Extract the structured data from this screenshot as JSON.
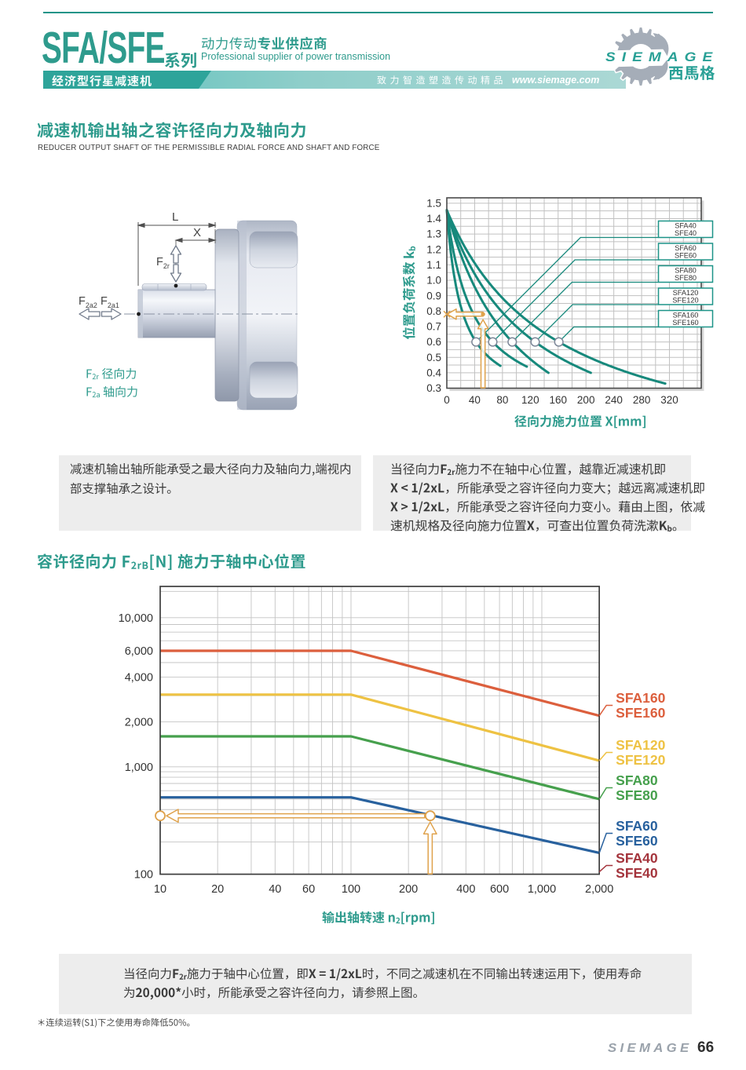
{
  "colors": {
    "teal": "#2E9B8D",
    "teal_deep": "#17897C",
    "band_dark": "#2EA49A",
    "band_light_1": "#5FC2BD",
    "band_light_2": "#AFDAD7",
    "logo_teal": "#29A096",
    "text_dark": "#3B3B3B",
    "box_gray": "#EDEDED",
    "sfa160": "#DC5F3D",
    "sfa120": "#EEC243",
    "sfa80": "#46A04D",
    "sfa60": "#28619E",
    "sfa40": "#A4343C",
    "annotation": "#DFA24C",
    "gear_gray": "#A5ADB8",
    "footer_gray": "#9AA2AB"
  },
  "header": {
    "series_title": "SFA/SFE",
    "series_suffix": [
      {
        "t": "系列",
        "b": 1
      }
    ],
    "tagline_cn": [
      {
        "t": "动力传动",
        "b": 0
      },
      {
        "t": "专业供应商",
        "b": 1
      }
    ],
    "tagline_en": "Professional supplier of power transmission",
    "band_product": [
      {
        "t": "经济型行星减速机",
        "b": 1
      }
    ],
    "band_slogan": [
      {
        "t": "致力智造塑造传动精品",
        "b": 0
      }
    ],
    "band_url": "www.siemage.com",
    "logo_text": "SIEMAGE",
    "logo_cn": [
      {
        "t": "西馬格",
        "b": 1
      }
    ]
  },
  "section1": {
    "title": [
      {
        "t": "减速机输出轴之容许径向力及轴向力",
        "b": 1
      }
    ],
    "subtitle": "REDUCER OUTPUT SHAFT OF THE PERMISSIBLE RADIAL FORCE AND SHAFT AND FORCE"
  },
  "drawing": {
    "dim_length": "L",
    "dim_position": "X",
    "force_radial": {
      "base": "F",
      "sub": "2r"
    },
    "force_axial_2": {
      "base": "F",
      "sub": "2a2"
    },
    "force_axial_1": {
      "base": "F",
      "sub": "2a1"
    },
    "legend_radial": [
      {
        "t": "F",
        "b": 0
      },
      {
        "t": "2r",
        "b": 0,
        "sub": 1
      },
      {
        "t": " 径向力",
        "b": 0
      }
    ],
    "legend_axial": [
      {
        "t": "F",
        "b": 0
      },
      {
        "t": "2a",
        "b": 0,
        "sub": 1
      },
      {
        "t": " 轴向力",
        "b": 0
      }
    ]
  },
  "section2": {
    "title": [
      {
        "t": "容许径向力 ",
        "b": 1
      },
      {
        "t": "F",
        "b": 1
      },
      {
        "t": "2rB",
        "b": 1,
        "sub": 1
      },
      {
        "t": "[N]",
        "b": 1
      },
      {
        "t": " 施力于轴中心位置",
        "b": 1
      }
    ]
  },
  "notes": {
    "left": {
      "lines": [
        [
          {
            "t": "减速机输出轴所能承受之最大径向力及轴向力,端视内",
            "b": 0
          }
        ],
        [
          {
            "t": "部支撑轴承之设计。",
            "b": 0
          }
        ]
      ]
    },
    "right": {
      "lines": [
        [
          {
            "t": "当径向力",
            "b": 0
          },
          {
            "t": "F",
            "b": 1
          },
          {
            "t": "2r",
            "b": 1,
            "sub": 1
          },
          {
            "t": "施力不在轴中心位置，越靠近减速机即",
            "b": 0
          }
        ],
        [
          {
            "t": "X",
            "b": 1
          },
          {
            "t": " < ",
            "b": 1
          },
          {
            "t": "1/2xL",
            "b": 1
          },
          {
            "t": "，所能承受之容许径向力变大；越远离减速机即",
            "b": 0
          }
        ],
        [
          {
            "t": "X",
            "b": 1
          },
          {
            "t": " > ",
            "b": 1
          },
          {
            "t": "1/2xL",
            "b": 1
          },
          {
            "t": "，所能承受之容许径向力变小。藉由上图，依减",
            "b": 0
          }
        ],
        [
          {
            "t": "速机规格及径向施力位置",
            "b": 0
          },
          {
            "t": "X",
            "b": 1
          },
          {
            "t": "，可查出位置负荷洗漱",
            "b": 0
          },
          {
            "t": "K",
            "b": 1
          },
          {
            "t": "b",
            "b": 1,
            "sub": 1
          },
          {
            "t": "。",
            "b": 0
          }
        ]
      ]
    },
    "bottom": {
      "lines": [
        [
          {
            "t": "当径向力",
            "b": 0
          },
          {
            "t": "F",
            "b": 1
          },
          {
            "t": "2r",
            "b": 1,
            "sub": 1
          },
          {
            "t": "施力于轴中心位置，即",
            "b": 0
          },
          {
            "t": "X",
            "b": 1
          },
          {
            "t": " = ",
            "b": 1
          },
          {
            "t": "1/2xL",
            "b": 1
          },
          {
            "t": "时，不同之减速机在不同输出转速运用下，使用寿命",
            "b": 0
          }
        ],
        [
          {
            "t": "为",
            "b": 0
          },
          {
            "t": "20,000*",
            "b": 1
          },
          {
            "t": "小时，所能承受之容许径向力，请参照上图。",
            "b": 0
          }
        ]
      ]
    }
  },
  "footnote": [
    {
      "t": "＊连续运转(S1)下之使用寿命降低50%。",
      "b": 0
    }
  ],
  "footer": {
    "brand": "SIEMAGE",
    "page": "66"
  },
  "chart_data": [
    {
      "type": "line",
      "name": "position-load-factor-chart",
      "xlabel_segs": [
        {
          "t": "径向力施力位置 ",
          "b": 1
        },
        {
          "t": "X[mm]",
          "b": 1
        }
      ],
      "ylabel_segs": [
        {
          "t": "位置负荷系数 ",
          "b": 1
        },
        {
          "t": "k",
          "b": 1
        },
        {
          "t": "b",
          "b": 1,
          "sub": 1
        }
      ],
      "xlim": [
        0,
        366
      ],
      "ylim": [
        0.3,
        1.535
      ],
      "xticks": [
        0,
        40,
        80,
        120,
        160,
        200,
        240,
        280,
        320
      ],
      "yticks": [
        "1.5",
        "1.4",
        "1.3",
        "1.2",
        "1.1",
        "1.0",
        "0.9",
        "0.8",
        "0.7",
        "0.6",
        "0.5",
        "0.4",
        "0.3"
      ],
      "grid": "on",
      "curve_start_kb": 1.455,
      "series": [
        {
          "name": "SFA40 / SFE40",
          "label": [
            "SFA40",
            "SFE40"
          ],
          "marker_x": 42,
          "marker_kb": 0.6,
          "end_x": 77,
          "end_kb": 0.445
        },
        {
          "name": "SFA60 / SFE60",
          "label": [
            "SFA60",
            "SFE60"
          ],
          "marker_x": 66,
          "marker_kb": 0.6,
          "end_x": 115,
          "end_kb": 0.44
        },
        {
          "name": "SFA80 / SFE80",
          "label": [
            "SFA80",
            "SFE80"
          ],
          "marker_x": 94,
          "marker_kb": 0.6,
          "end_x": 146,
          "end_kb": 0.4
        },
        {
          "name": "SFA120 / SFE120",
          "label": [
            "SFA120",
            "SFE120"
          ],
          "marker_x": 127,
          "marker_kb": 0.6,
          "end_x": 207,
          "end_kb": 0.4
        },
        {
          "name": "SFA160 / SFE160",
          "label": [
            "SFA160",
            "SFE160"
          ],
          "marker_x": 161,
          "marker_kb": 0.6,
          "end_x": 314,
          "end_kb": 0.33
        }
      ],
      "annotation": {
        "x_mm": 52,
        "kb": 0.78
      }
    },
    {
      "type": "line",
      "name": "permissible-radial-force-chart",
      "xlabel_segs": [
        {
          "t": "输出轴转速 ",
          "b": 1
        },
        {
          "t": "n",
          "b": 1
        },
        {
          "t": "2",
          "b": 1,
          "sub": 1
        },
        {
          "t": "[rpm]",
          "b": 1
        }
      ],
      "xscale": "log",
      "yscale": "log",
      "xlim": [
        10,
        2000
      ],
      "ylim": [
        100,
        16000
      ],
      "xticks": [
        {
          "v": 10,
          "l": "10"
        },
        {
          "v": 20,
          "l": "20"
        },
        {
          "v": 40,
          "l": "40"
        },
        {
          "v": 60,
          "l": "60"
        },
        {
          "v": 100,
          "l": "100"
        },
        {
          "v": 200,
          "l": "200"
        },
        {
          "v": 400,
          "l": "400"
        },
        {
          "v": 600,
          "l": "600"
        },
        {
          "v": 1000,
          "l": "1,000"
        },
        {
          "v": 2000,
          "l": "2,000"
        }
      ],
      "yticks": [
        {
          "v": 100,
          "l": "100"
        },
        {
          "v": 1000,
          "l": "1,000"
        },
        {
          "v": 2000,
          "l": "2,000"
        },
        {
          "v": 4000,
          "l": "4,000"
        },
        {
          "v": 6000,
          "l": "6,000"
        },
        {
          "v": 10000,
          "l": "10,000"
        }
      ],
      "grid": "on",
      "series": [
        {
          "name": "SFA160 / SFE160",
          "label": [
            "SFA160",
            "SFE160"
          ],
          "color": "#DC5F3D",
          "flat": 6000,
          "break_x": 100,
          "end_x": 2000,
          "end": 2200
        },
        {
          "name": "SFA120 / SFE120",
          "label": [
            "SFA120",
            "SFE120"
          ],
          "color": "#EEC243",
          "flat": 3050,
          "break_x": 100,
          "end_x": 2000,
          "end": 1100
        },
        {
          "name": "SFA80 / SFE80",
          "label": [
            "SFA80",
            "SFE80"
          ],
          "color": "#46A04D",
          "flat": 1600,
          "break_x": 100,
          "end_x": 2000,
          "end": 500
        },
        {
          "name": "SFA60 / SFE60",
          "label": [
            "SFA60",
            "SFE60"
          ],
          "color": "#28619E",
          "flat": 520,
          "break_x": 100,
          "end_x": 2000,
          "end": 158
        },
        {
          "name": "SFA40 / SFE40",
          "label": [
            "SFA40",
            "SFE40"
          ],
          "color": "#A4343C",
          "flat": null,
          "note": "label only"
        }
      ],
      "annotation": {
        "force": 350,
        "x_from": 10,
        "x_to": 260
      }
    }
  ]
}
